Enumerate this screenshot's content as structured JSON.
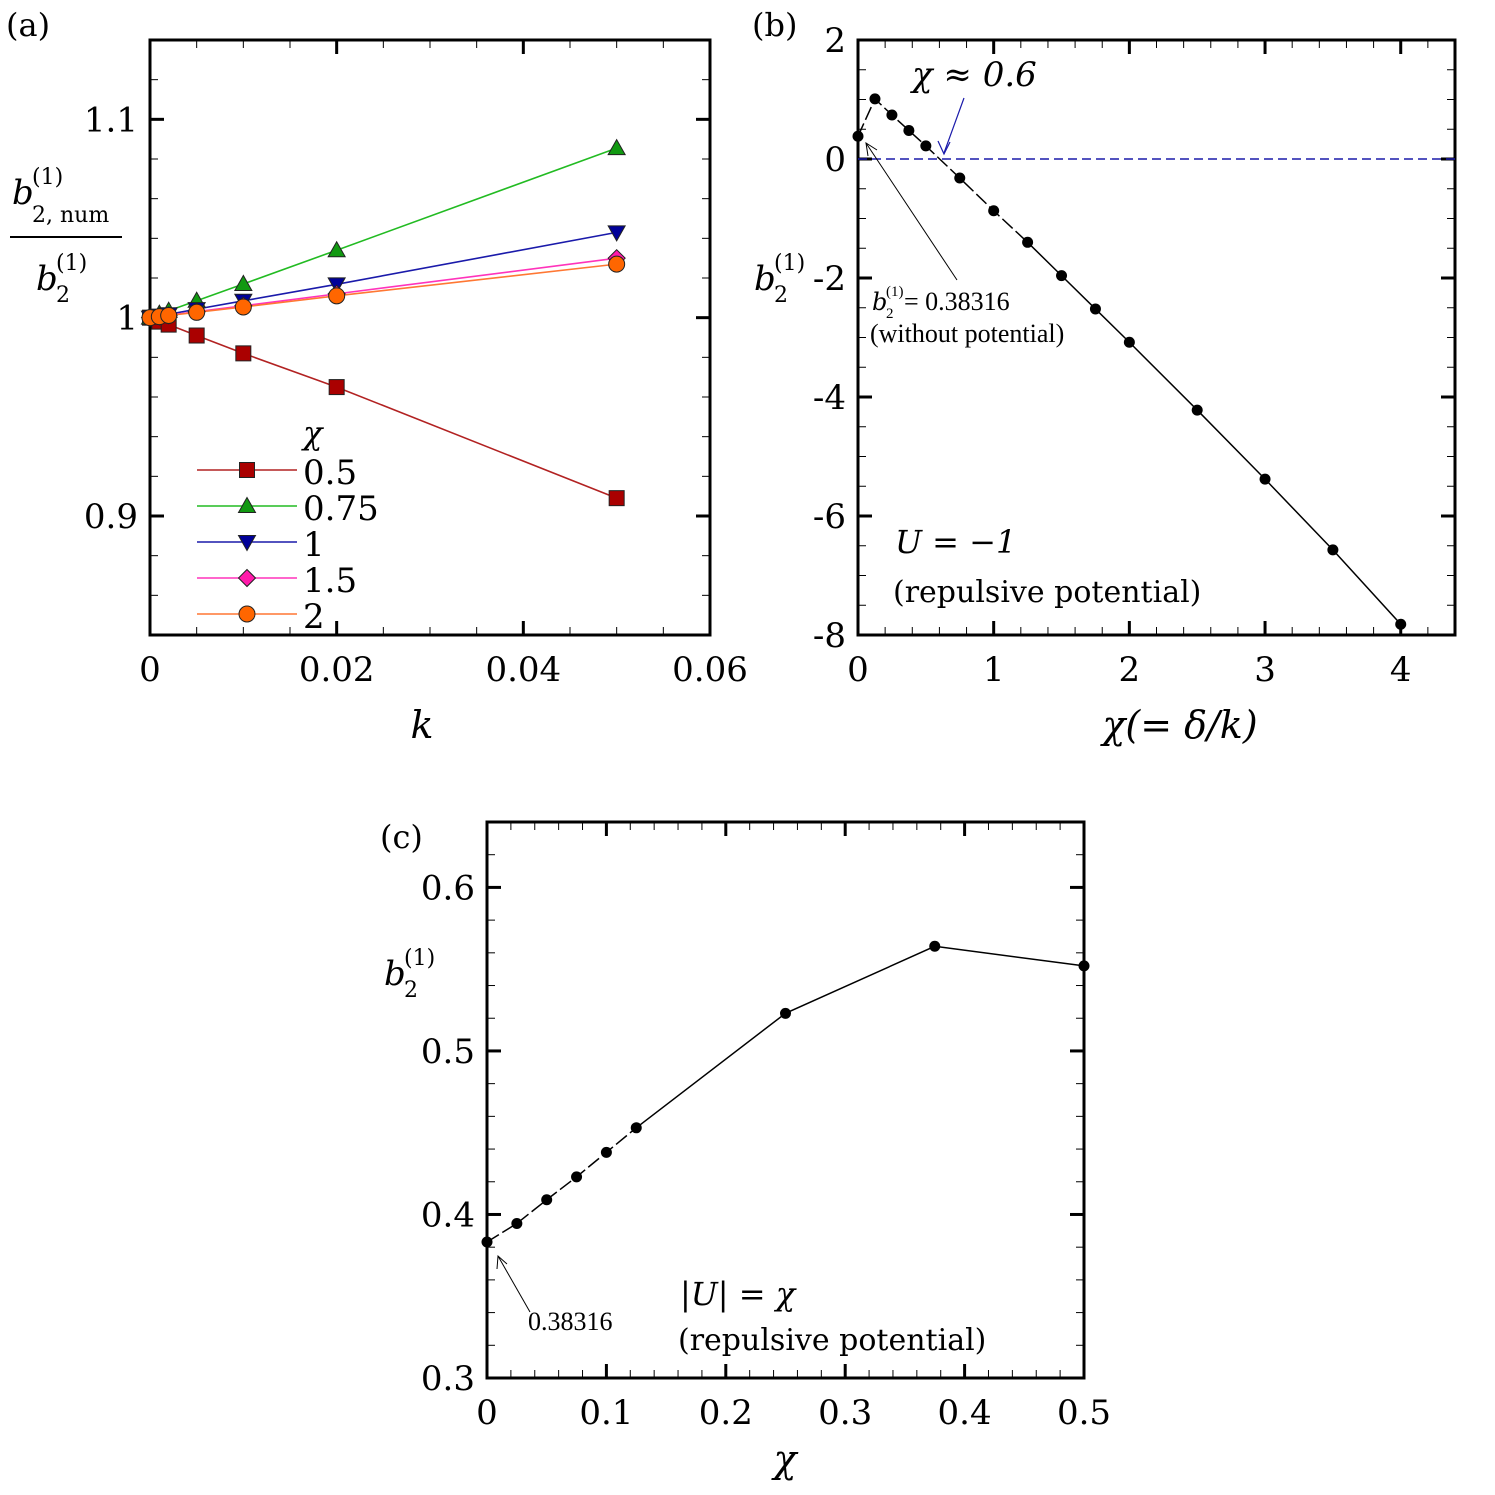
{
  "chart_data": [
    {
      "panel_label": "(a)",
      "type": "line",
      "xlabel": "k",
      "ylabel": {
        "numerator_base": "b",
        "numerator_sub": "2, num",
        "numerator_sup": "(1)",
        "denominator_base": "b",
        "denominator_sub": "2",
        "denominator_sup": "(1)"
      },
      "xlim": [
        0,
        0.06
      ],
      "ylim": [
        0.84,
        1.14
      ],
      "xticks": [
        0,
        0.02,
        0.04,
        0.06
      ],
      "xtick_labels": [
        "0",
        "0.02",
        "0.04",
        "0.06"
      ],
      "yticks": [
        0.9,
        1,
        1.1
      ],
      "ytick_labels": [
        "0.9",
        "1",
        "1.1"
      ],
      "x_minor_step": 0.005,
      "y_minor_step": 0.02,
      "legend_title": "χ",
      "legend_position": "bottom-left",
      "x": [
        0,
        0.001,
        0.002,
        0.005,
        0.01,
        0.02,
        0.05
      ],
      "series": [
        {
          "name": "0.5",
          "marker": "square",
          "color": "#b22222",
          "fill": "#aa0000",
          "values": [
            1,
            0.998,
            0.9965,
            0.991,
            0.982,
            0.965,
            0.909
          ]
        },
        {
          "name": "0.75",
          "marker": "triangle-up",
          "color": "#22bb22",
          "fill": "#119911",
          "values": [
            1,
            1.002,
            1.0035,
            1.0085,
            1.017,
            1.034,
            1.0855
          ]
        },
        {
          "name": "1",
          "marker": "triangle-down",
          "color": "#1a1aaa",
          "fill": "#000099",
          "values": [
            1,
            1.001,
            1.0017,
            1.0043,
            1.0085,
            1.0168,
            1.043
          ]
        },
        {
          "name": "1.5",
          "marker": "diamond",
          "color": "#ff33bb",
          "fill": "#ff1aaa",
          "values": [
            1,
            1.0006,
            1.0012,
            1.003,
            1.006,
            1.012,
            1.03
          ]
        },
        {
          "name": "2",
          "marker": "circle",
          "color": "#ff7733",
          "fill": "#ff6600",
          "values": [
            1,
            1.0005,
            1.0011,
            1.0027,
            1.0054,
            1.011,
            1.027
          ]
        }
      ]
    },
    {
      "panel_label": "(b)",
      "type": "line",
      "xlabel": "χ(= δ/k)",
      "ylabel": {
        "base": "b",
        "sub": "2",
        "sup": "(1)"
      },
      "xlim": [
        0,
        4.4
      ],
      "ylim": [
        -8,
        2
      ],
      "xticks": [
        0,
        1,
        2,
        3,
        4
      ],
      "xtick_labels": [
        "0",
        "1",
        "2",
        "3",
        "4"
      ],
      "yticks": [
        -8,
        -6,
        -4,
        -2,
        0,
        2
      ],
      "ytick_labels": [
        "-8",
        "-6",
        "-4",
        "-2",
        "0",
        "2"
      ],
      "x_minor_step": 0.2,
      "y_minor_step": 0.5,
      "x": [
        0,
        0.125,
        0.25,
        0.375,
        0.5,
        0.75,
        1,
        1.25,
        1.5,
        1.75,
        2,
        2.5,
        3,
        3.5,
        4
      ],
      "values": [
        0.38316,
        1.01,
        0.74,
        0.48,
        0.22,
        -0.32,
        -0.87,
        -1.4,
        -1.96,
        -2.52,
        -3.08,
        -4.22,
        -5.38,
        -6.57,
        -7.82
      ],
      "reference_line": {
        "y": 0,
        "color": "#1a1aaa",
        "style": "dashed"
      },
      "annotations": {
        "crossing": "χ ≈ 0.6",
        "crossing_x": 0.6,
        "crossing_color": "#1a1aaa",
        "no_potential_lhs_base": "b",
        "no_potential_lhs_sub": "2",
        "no_potential_lhs_sup": "(1)",
        "no_potential_value": " = 0.38316",
        "no_potential_note": "(without potential)",
        "condition": "U = −1",
        "condition_note": "(repulsive potential)"
      }
    },
    {
      "panel_label": "(c)",
      "type": "line",
      "xlabel": "χ",
      "ylabel": {
        "base": "b",
        "sub": "2",
        "sup": "(1)"
      },
      "xlim": [
        0,
        0.5
      ],
      "ylim": [
        0.3,
        0.64
      ],
      "xticks": [
        0,
        0.1,
        0.2,
        0.3,
        0.4,
        0.5
      ],
      "xtick_labels": [
        "0",
        "0.1",
        "0.2",
        "0.3",
        "0.4",
        "0.5"
      ],
      "yticks": [
        0.3,
        0.4,
        0.5,
        0.6
      ],
      "ytick_labels": [
        "0.3",
        "0.4",
        "0.5",
        "0.6"
      ],
      "x_minor_step": 0.02,
      "y_minor_step": 0.02,
      "x": [
        0,
        0.025,
        0.05,
        0.075,
        0.1,
        0.125,
        0.25,
        0.375,
        0.5
      ],
      "values": [
        0.38316,
        0.3945,
        0.409,
        0.423,
        0.438,
        0.453,
        0.523,
        0.564,
        0.552
      ],
      "annotations": {
        "start_value": "0.38316",
        "condition": "|U| = χ",
        "condition_note": "(repulsive potential)"
      }
    }
  ]
}
